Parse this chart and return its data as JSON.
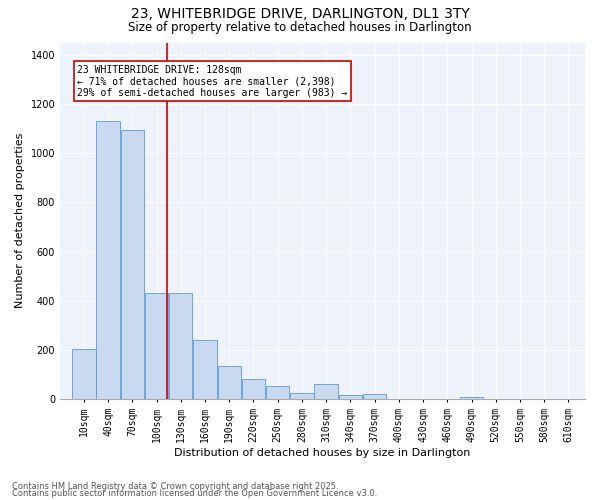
{
  "title": "23, WHITEBRIDGE DRIVE, DARLINGTON, DL1 3TY",
  "subtitle": "Size of property relative to detached houses in Darlington",
  "xlabel": "Distribution of detached houses by size in Darlington",
  "ylabel": "Number of detached properties",
  "categories": [
    "10sqm",
    "40sqm",
    "70sqm",
    "100sqm",
    "130sqm",
    "160sqm",
    "190sqm",
    "220sqm",
    "250sqm",
    "280sqm",
    "310sqm",
    "340sqm",
    "370sqm",
    "400sqm",
    "430sqm",
    "460sqm",
    "490sqm",
    "520sqm",
    "550sqm",
    "580sqm",
    "610sqm"
  ],
  "values": [
    205,
    1130,
    1095,
    430,
    430,
    240,
    135,
    80,
    55,
    25,
    60,
    15,
    20,
    0,
    0,
    0,
    10,
    0,
    0,
    0,
    0
  ],
  "bar_color": "#c8d9f0",
  "bar_edge_color": "#5b9bd5",
  "line_color": "#cc0000",
  "annotation_text": "23 WHITEBRIDGE DRIVE: 128sqm\n← 71% of detached houses are smaller (2,398)\n29% of semi-detached houses are larger (983) →",
  "annotation_box_color": "#cc0000",
  "ylim": [
    0,
    1450
  ],
  "yticks": [
    0,
    200,
    400,
    600,
    800,
    1000,
    1200,
    1400
  ],
  "property_size": 128,
  "footer_line1": "Contains HM Land Registry data © Crown copyright and database right 2025.",
  "footer_line2": "Contains public sector information licensed under the Open Government Licence v3.0.",
  "bg_color": "#eef2fb",
  "grid_color": "#ffffff",
  "title_fontsize": 10,
  "subtitle_fontsize": 8.5,
  "axis_label_fontsize": 8,
  "tick_fontsize": 7,
  "annotation_fontsize": 7,
  "footer_fontsize": 6
}
